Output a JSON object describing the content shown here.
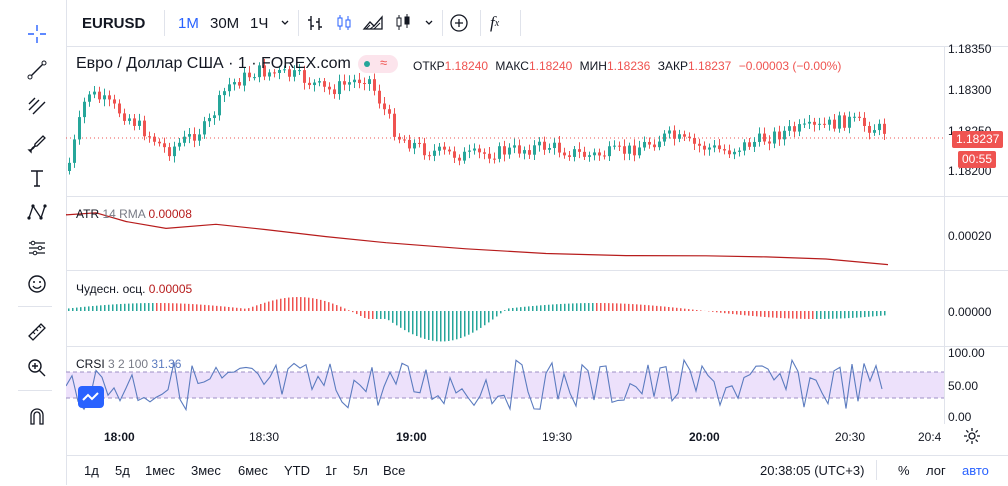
{
  "toolbar": {
    "symbol": "EURUSD",
    "intervals": [
      "1М",
      "30М",
      "1Ч"
    ],
    "active_interval": "1М"
  },
  "legend": {
    "title": "Евро / Доллар США · 1 · FOREX.com",
    "open_label": "ОТКР",
    "open": "1.18240",
    "high_label": "МАКС",
    "high": "1.18240",
    "low_label": "МИН",
    "low": "1.18236",
    "close_label": "ЗАКР",
    "close": "1.18237",
    "change": "−0.00003 (−0.00%)"
  },
  "price_scale": [
    "1.18350",
    "1.18300",
    "1.18250",
    "1.18200"
  ],
  "price_badge": "1.18237",
  "countdown_badge": "00:55",
  "atr": {
    "label": "ATR",
    "params": "14 RMA",
    "value": "0.00008",
    "scale": "0.00020"
  },
  "ao": {
    "label": "Чудесн. осц.",
    "value": "0.00005",
    "scale": "0.00000"
  },
  "crsi": {
    "label": "CRSI",
    "params": "3 2 100",
    "value": "31.36",
    "scale": [
      "100.00",
      "50.00",
      "0.00"
    ]
  },
  "time_axis": [
    "18:00",
    "18:30",
    "19:00",
    "19:30",
    "20:00",
    "20:30",
    "20:4"
  ],
  "ranges": [
    "1д",
    "5д",
    "1мес",
    "3мес",
    "6мес",
    "YTD",
    "1г",
    "5л",
    "Все"
  ],
  "clock": "20:38:05 (UTC+3)",
  "bottom_right": {
    "percent": "%",
    "log": "лог",
    "auto": "авто"
  },
  "colors": {
    "up": "#26a69a",
    "down": "#ef5350",
    "accent": "#2962ff",
    "atr": "#b71c1c",
    "crsi": "#5b7bbf",
    "band": "#e8dcf7"
  },
  "icons": [
    "crosshair-icon",
    "trend-line-icon",
    "fib-icon",
    "brush-icon",
    "text-icon",
    "pattern-icon",
    "prediction-icon",
    "emoji-icon",
    "ruler-icon",
    "zoom-icon",
    "magnet-icon",
    "gear-icon",
    "indicators-icon",
    "add-icon"
  ]
}
